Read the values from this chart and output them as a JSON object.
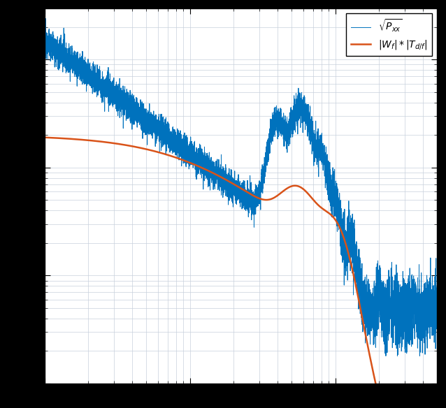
{
  "line1_color": "#0072BD",
  "line2_color": "#D95319",
  "line1_label": "$\\sqrt{P_{xx}}$",
  "line2_label": "$|W_f| * |T_{d/f}|$",
  "grid_color": "#c8d0dc",
  "xlim": [
    1,
    500
  ],
  "ylim": [
    1e-09,
    3e-06
  ],
  "fig_bg": "#000000",
  "ax_bg": "#ffffff"
}
